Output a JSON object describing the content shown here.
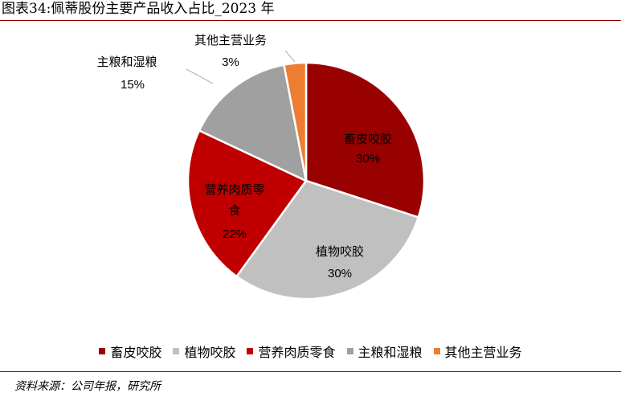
{
  "figure": {
    "title": "图表34:佩蒂股份主要产品收入占比_2023 年",
    "source": "资料来源：公司年报，研究所"
  },
  "chart_data": {
    "type": "pie",
    "title": "",
    "categories": [
      "畜皮咬胶",
      "植物咬胶",
      "营养肉质零食",
      "主粮和湿粮",
      "其他主营业务"
    ],
    "values": [
      30,
      30,
      22,
      15,
      3
    ],
    "value_labels": [
      "30%",
      "30%",
      "22%",
      "15%",
      "3%"
    ],
    "colors": [
      "#990000",
      "#c0c0c0",
      "#c00000",
      "#a0a0a0",
      "#ed7d31"
    ],
    "start_angle_deg": 0,
    "direction": "clockwise",
    "legend": {
      "position": "bottom",
      "entries": [
        "畜皮咬胶",
        "植物咬胶",
        "营养肉质零食",
        "主粮和湿粮",
        "其他主营业务"
      ]
    },
    "slice_labels": [
      {
        "name_lines": [
          "畜皮咬胶"
        ],
        "pct": "30%",
        "placement": "inside",
        "name_color": "#000000",
        "pct_color": "#000000"
      },
      {
        "name_lines": [
          "植物咬胶"
        ],
        "pct": "30%",
        "placement": "inside",
        "name_color": "#000000",
        "pct_color": "#000000"
      },
      {
        "name_lines": [
          "营养肉质零",
          "食"
        ],
        "pct": "22%",
        "placement": "inside",
        "name_color": "#000000",
        "pct_color": "#000000"
      },
      {
        "name_lines": [
          "主粮和湿粮"
        ],
        "pct": "15%",
        "placement": "outside",
        "name_color": "#000000",
        "pct_color": "#000000"
      },
      {
        "name_lines": [
          "其他主营业务"
        ],
        "pct": "3%",
        "placement": "outside",
        "name_color": "#000000",
        "pct_color": "#000000"
      }
    ]
  }
}
